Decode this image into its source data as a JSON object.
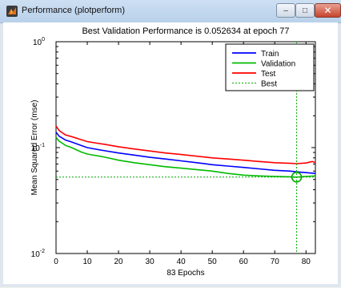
{
  "window": {
    "title": "Performance (plotperform)",
    "controls": {
      "minimize": "–",
      "maximize": "□",
      "close": "✕"
    }
  },
  "colors": {
    "train": "#0000ff",
    "validation": "#00bb00",
    "test": "#ff0000",
    "best": "#00aa00"
  },
  "chart_data": {
    "type": "line",
    "title": "Best Validation Performance is 0.052634 at epoch 77",
    "xlabel": "83 Epochs",
    "ylabel": "Mean Squared Error  (mse)",
    "yscale": "log",
    "xlim": [
      0,
      83
    ],
    "ylim": [
      0.01,
      1
    ],
    "xticks": [
      0,
      10,
      20,
      30,
      40,
      50,
      60,
      70,
      80
    ],
    "yticks": [
      {
        "value": 0.01,
        "base": "10",
        "exp": "-2"
      },
      {
        "value": 0.1,
        "base": "10",
        "exp": "-1"
      },
      {
        "value": 1,
        "base": "10",
        "exp": "0"
      }
    ],
    "legend_position": "top-right",
    "best": {
      "epoch": 77,
      "value": 0.052634,
      "label": "Best"
    },
    "series": [
      {
        "name": "Train",
        "x": [
          0,
          1,
          2,
          3,
          5,
          8,
          10,
          15,
          20,
          25,
          30,
          35,
          40,
          45,
          50,
          55,
          60,
          65,
          70,
          75,
          77,
          80,
          83
        ],
        "values": [
          0.14,
          0.128,
          0.123,
          0.118,
          0.113,
          0.105,
          0.1,
          0.094,
          0.089,
          0.085,
          0.081,
          0.078,
          0.075,
          0.072,
          0.069,
          0.067,
          0.065,
          0.063,
          0.061,
          0.06,
          0.059,
          0.058,
          0.057
        ]
      },
      {
        "name": "Validation",
        "x": [
          0,
          1,
          2,
          3,
          5,
          8,
          10,
          15,
          20,
          25,
          30,
          35,
          40,
          45,
          50,
          55,
          60,
          65,
          70,
          75,
          77,
          80,
          83
        ],
        "values": [
          0.125,
          0.115,
          0.11,
          0.105,
          0.1,
          0.091,
          0.087,
          0.082,
          0.076,
          0.072,
          0.069,
          0.066,
          0.064,
          0.062,
          0.06,
          0.057,
          0.055,
          0.054,
          0.0535,
          0.053,
          0.052634,
          0.0535,
          0.054
        ]
      },
      {
        "name": "Test",
        "x": [
          0,
          1,
          2,
          3,
          5,
          8,
          10,
          15,
          20,
          25,
          30,
          35,
          40,
          45,
          50,
          55,
          60,
          65,
          70,
          75,
          77,
          80,
          82,
          83
        ],
        "values": [
          0.16,
          0.145,
          0.138,
          0.132,
          0.127,
          0.119,
          0.114,
          0.108,
          0.102,
          0.097,
          0.093,
          0.089,
          0.086,
          0.083,
          0.08,
          0.078,
          0.076,
          0.074,
          0.072,
          0.071,
          0.0705,
          0.0715,
          0.074,
          0.072
        ]
      }
    ]
  }
}
